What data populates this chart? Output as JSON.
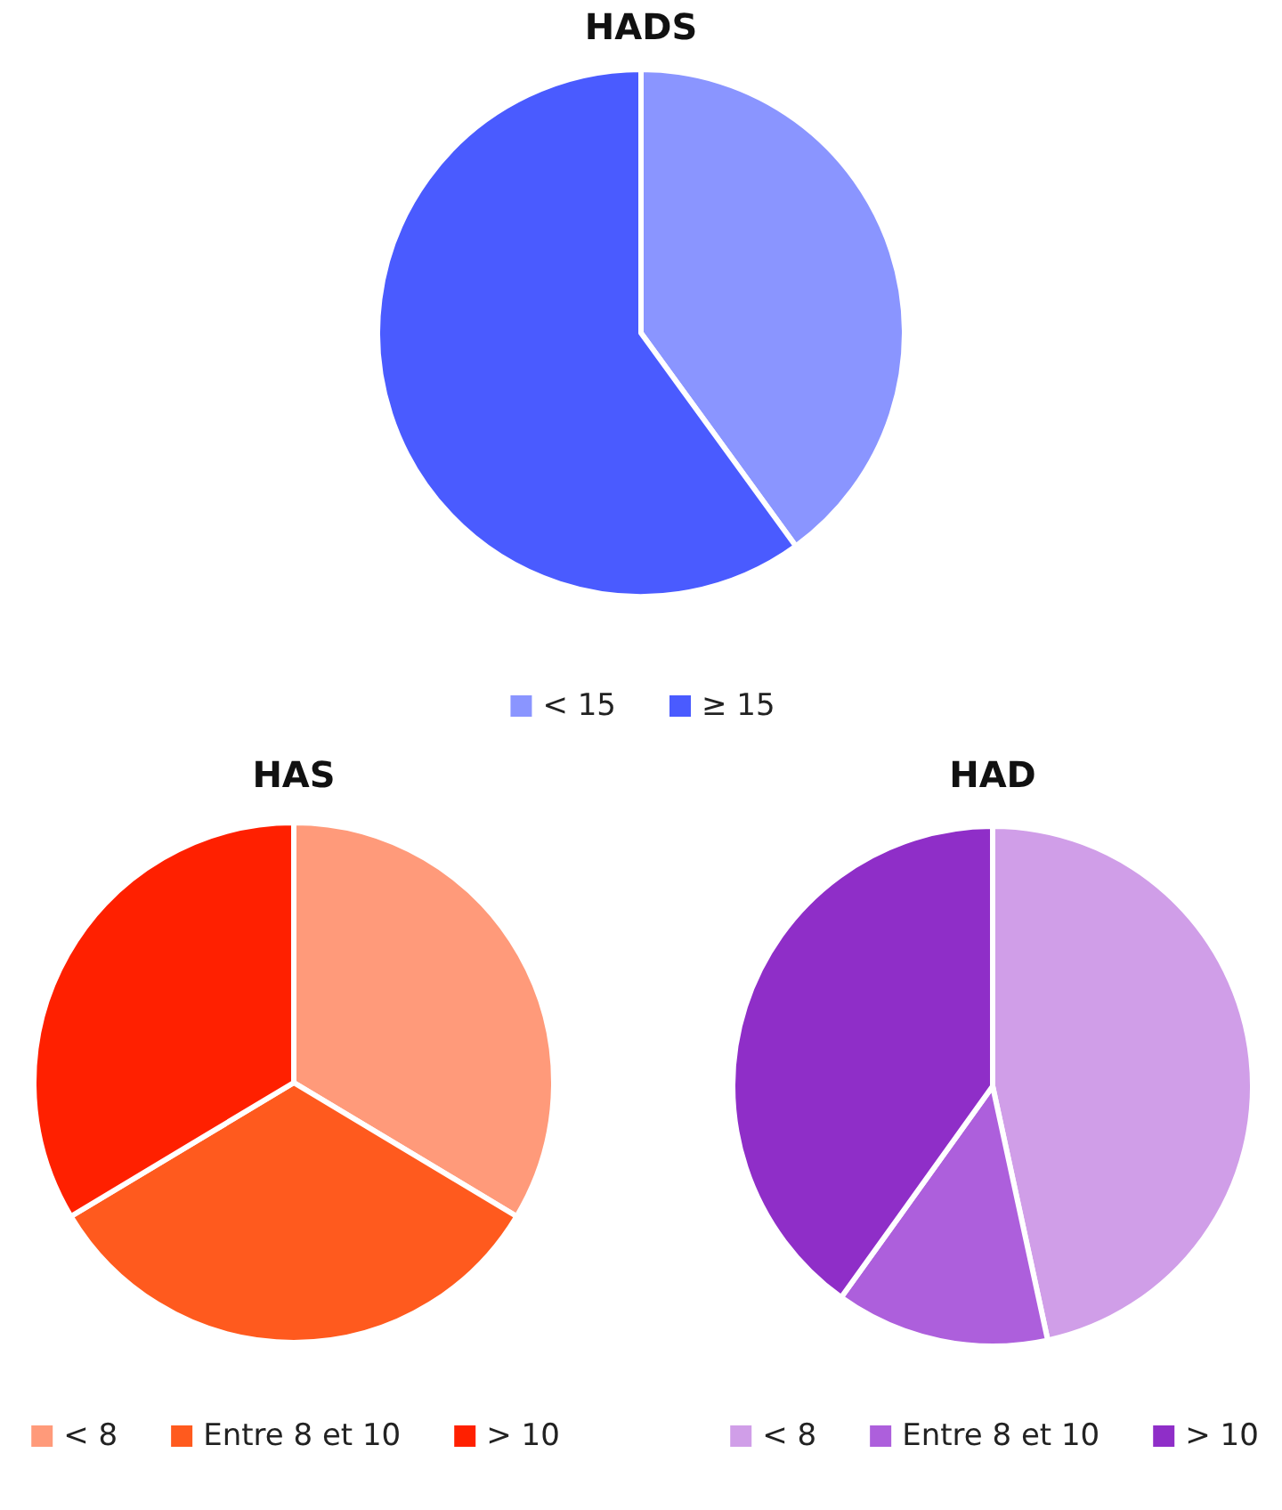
{
  "chart_data": [
    {
      "type": "pie",
      "title": "HADS",
      "categories": [
        "< 15",
        "≥ 15"
      ],
      "values": [
        40,
        60
      ],
      "colors": [
        "#8a95ff",
        "#4a5bff"
      ],
      "legend": "bottom"
    },
    {
      "type": "pie",
      "title": "HAS",
      "categories": [
        "< 8",
        "Entre 8 et 10",
        "> 10"
      ],
      "values": [
        33.6,
        32.8,
        33.6
      ],
      "colors": [
        "#ff9a7a",
        "#ff5a1e",
        "#ff2000"
      ],
      "legend": "bottom"
    },
    {
      "type": "pie",
      "title": "HAD",
      "categories": [
        "< 8",
        "Entre 8 et 10",
        "> 10"
      ],
      "values": [
        46.6,
        13.3,
        40.1
      ],
      "colors": [
        "#d09ee8",
        "#ad5fdc",
        "#8f2ec8"
      ],
      "legend": "bottom"
    }
  ]
}
